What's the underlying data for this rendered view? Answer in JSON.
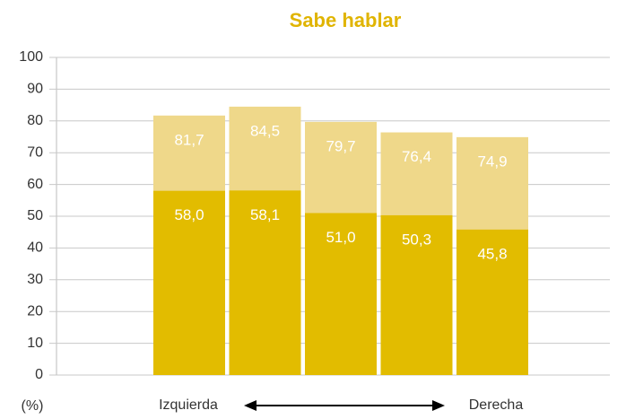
{
  "chart_data": {
    "type": "overlap_bar",
    "title": "Sabe hablar",
    "categories": [
      null,
      null,
      null,
      null,
      null
    ],
    "series": [
      {
        "color": "#efd88a",
        "values": [
          81.7,
          84.5,
          79.7,
          76.4,
          74.9
        ],
        "value_labels": [
          "81,7",
          "84,5",
          "79,7",
          "76,4",
          "74,9"
        ]
      },
      {
        "color": "#e2bc00",
        "values": [
          58.0,
          58.1,
          51.0,
          50.3,
          45.8
        ],
        "value_labels": [
          "58,0",
          "58,1",
          "51,0",
          "50,3",
          "45,8"
        ]
      }
    ],
    "ylim": [
      0,
      100
    ],
    "yticks": [
      0,
      10,
      20,
      30,
      40,
      50,
      60,
      70,
      80,
      90,
      100
    ],
    "grid": true,
    "y_unit_label": "(%)",
    "x_left_label": "Izquierda",
    "x_right_label": "Derecha"
  }
}
